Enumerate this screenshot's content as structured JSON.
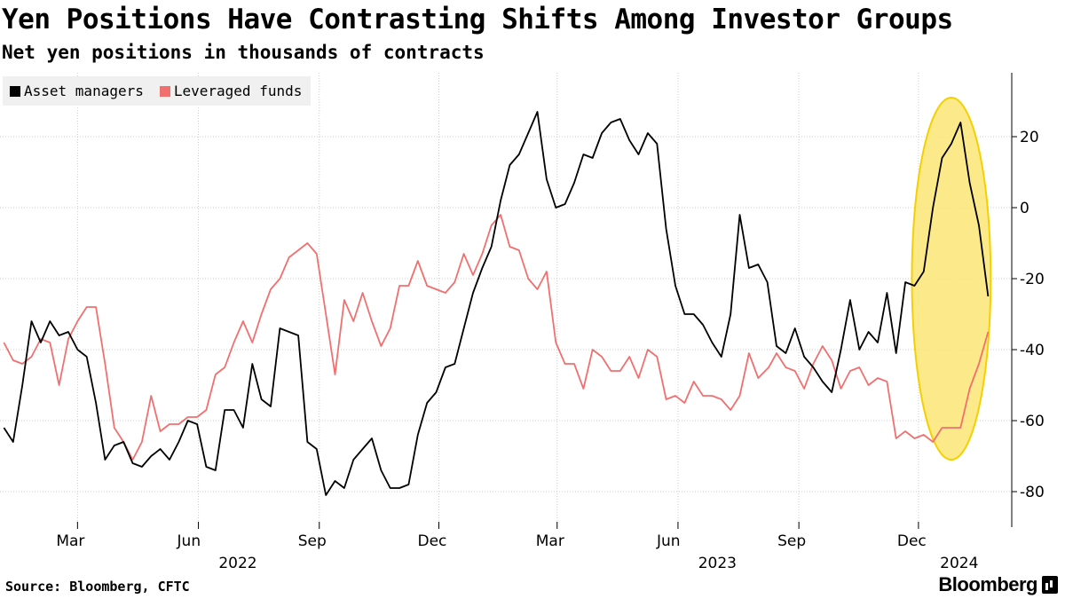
{
  "header": {
    "title": "Yen Positions Have Contrasting Shifts Among Investor Groups",
    "subtitle": "Net yen positions in thousands of contracts"
  },
  "footer": {
    "source": "Source: Bloomberg, CFTC",
    "brand": "Bloomberg"
  },
  "colors": {
    "asset_managers": "#000000",
    "leveraged_funds": "#f07070",
    "highlight_fill": "#fce676",
    "highlight_stroke": "#f5d000",
    "grid": "#cccccc"
  },
  "chart_data": {
    "type": "line",
    "title": "Yen Positions Have Contrasting Shifts Among Investor Groups",
    "subtitle": "Net yen positions in thousands of contracts",
    "ylabel": "",
    "xlabel": "",
    "ylim": [
      -90,
      38
    ],
    "xlim": [
      "2022-01-01",
      "2024-02-10"
    ],
    "y_axis_position": "right",
    "y_ticks": [
      20,
      0,
      -20,
      -40,
      -60,
      -80
    ],
    "y_tick_labels": [
      "20",
      "0",
      "-20",
      "-40",
      "-60",
      "-80"
    ],
    "x_month_ticks": [
      {
        "date": "2022-03-01",
        "label": "Mar"
      },
      {
        "date": "2022-06-01",
        "label": "Jun"
      },
      {
        "date": "2022-09-01",
        "label": "Sep"
      },
      {
        "date": "2022-12-01",
        "label": "Dec"
      },
      {
        "date": "2023-03-01",
        "label": "Mar"
      },
      {
        "date": "2023-06-01",
        "label": "Jun"
      },
      {
        "date": "2023-09-01",
        "label": "Sep"
      },
      {
        "date": "2023-12-01",
        "label": "Dec"
      }
    ],
    "x_year_labels": [
      {
        "date": "2022-07-01",
        "label": "2022"
      },
      {
        "date": "2023-07-01",
        "label": "2023"
      },
      {
        "date": "2024-01-01",
        "label": "2024"
      }
    ],
    "grid": true,
    "legend_position": "top-left",
    "series": [
      {
        "name": "Asset managers",
        "color": "#000000",
        "points": [
          [
            "2022-01-04",
            -62
          ],
          [
            "2022-01-11",
            -66
          ],
          [
            "2022-01-18",
            -50
          ],
          [
            "2022-01-25",
            -32
          ],
          [
            "2022-02-01",
            -38
          ],
          [
            "2022-02-08",
            -32
          ],
          [
            "2022-02-15",
            -36
          ],
          [
            "2022-02-22",
            -35
          ],
          [
            "2022-03-01",
            -40
          ],
          [
            "2022-03-08",
            -42
          ],
          [
            "2022-03-15",
            -55
          ],
          [
            "2022-03-22",
            -71
          ],
          [
            "2022-03-29",
            -67
          ],
          [
            "2022-04-05",
            -66
          ],
          [
            "2022-04-12",
            -72
          ],
          [
            "2022-04-19",
            -73
          ],
          [
            "2022-04-26",
            -70
          ],
          [
            "2022-05-03",
            -68
          ],
          [
            "2022-05-10",
            -71
          ],
          [
            "2022-05-17",
            -66
          ],
          [
            "2022-05-24",
            -60
          ],
          [
            "2022-05-31",
            -61
          ],
          [
            "2022-06-07",
            -73
          ],
          [
            "2022-06-14",
            -74
          ],
          [
            "2022-06-21",
            -57
          ],
          [
            "2022-06-28",
            -57
          ],
          [
            "2022-07-05",
            -62
          ],
          [
            "2022-07-12",
            -44
          ],
          [
            "2022-07-19",
            -54
          ],
          [
            "2022-07-26",
            -56
          ],
          [
            "2022-08-02",
            -34
          ],
          [
            "2022-08-09",
            -35
          ],
          [
            "2022-08-16",
            -36
          ],
          [
            "2022-08-23",
            -66
          ],
          [
            "2022-08-30",
            -68
          ],
          [
            "2022-09-06",
            -81
          ],
          [
            "2022-09-13",
            -77
          ],
          [
            "2022-09-20",
            -79
          ],
          [
            "2022-09-27",
            -71
          ],
          [
            "2022-10-04",
            -68
          ],
          [
            "2022-10-11",
            -65
          ],
          [
            "2022-10-18",
            -74
          ],
          [
            "2022-10-25",
            -79
          ],
          [
            "2022-11-01",
            -79
          ],
          [
            "2022-11-08",
            -78
          ],
          [
            "2022-11-15",
            -64
          ],
          [
            "2022-11-22",
            -55
          ],
          [
            "2022-11-29",
            -52
          ],
          [
            "2022-12-06",
            -45
          ],
          [
            "2022-12-13",
            -44
          ],
          [
            "2022-12-20",
            -34
          ],
          [
            "2022-12-27",
            -24
          ],
          [
            "2023-01-03",
            -17
          ],
          [
            "2023-01-10",
            -11
          ],
          [
            "2023-01-17",
            2
          ],
          [
            "2023-01-24",
            12
          ],
          [
            "2023-01-31",
            15
          ],
          [
            "2023-02-07",
            21
          ],
          [
            "2023-02-14",
            27
          ],
          [
            "2023-02-21",
            8
          ],
          [
            "2023-02-28",
            0
          ],
          [
            "2023-03-07",
            1
          ],
          [
            "2023-03-14",
            7
          ],
          [
            "2023-03-21",
            15
          ],
          [
            "2023-03-28",
            14
          ],
          [
            "2023-04-04",
            21
          ],
          [
            "2023-04-11",
            24
          ],
          [
            "2023-04-18",
            25
          ],
          [
            "2023-04-25",
            19
          ],
          [
            "2023-05-02",
            15
          ],
          [
            "2023-05-09",
            21
          ],
          [
            "2023-05-16",
            18
          ],
          [
            "2023-05-23",
            -6
          ],
          [
            "2023-05-30",
            -22
          ],
          [
            "2023-06-06",
            -30
          ],
          [
            "2023-06-13",
            -30
          ],
          [
            "2023-06-20",
            -33
          ],
          [
            "2023-06-27",
            -38
          ],
          [
            "2023-07-04",
            -42
          ],
          [
            "2023-07-11",
            -30
          ],
          [
            "2023-07-18",
            -2
          ],
          [
            "2023-07-25",
            -17
          ],
          [
            "2023-08-01",
            -16
          ],
          [
            "2023-08-08",
            -21
          ],
          [
            "2023-08-15",
            -39
          ],
          [
            "2023-08-22",
            -41
          ],
          [
            "2023-08-29",
            -34
          ],
          [
            "2023-09-05",
            -42
          ],
          [
            "2023-09-12",
            -45
          ],
          [
            "2023-09-19",
            -49
          ],
          [
            "2023-09-26",
            -52
          ],
          [
            "2023-10-03",
            -40
          ],
          [
            "2023-10-10",
            -26
          ],
          [
            "2023-10-17",
            -40
          ],
          [
            "2023-10-24",
            -35
          ],
          [
            "2023-10-31",
            -38
          ],
          [
            "2023-11-07",
            -24
          ],
          [
            "2023-11-14",
            -41
          ],
          [
            "2023-11-21",
            -21
          ],
          [
            "2023-11-28",
            -22
          ],
          [
            "2023-12-05",
            -18
          ],
          [
            "2023-12-12",
            0
          ],
          [
            "2023-12-19",
            14
          ],
          [
            "2023-12-26",
            18
          ],
          [
            "2024-01-02",
            24
          ],
          [
            "2024-01-09",
            7
          ],
          [
            "2024-01-16",
            -5
          ],
          [
            "2024-01-23",
            -25
          ]
        ]
      },
      {
        "name": "Leveraged funds",
        "color": "#f07070",
        "points": [
          [
            "2022-01-04",
            -38
          ],
          [
            "2022-01-11",
            -43
          ],
          [
            "2022-01-18",
            -44
          ],
          [
            "2022-01-25",
            -42
          ],
          [
            "2022-02-01",
            -37
          ],
          [
            "2022-02-08",
            -38
          ],
          [
            "2022-02-15",
            -50
          ],
          [
            "2022-02-22",
            -37
          ],
          [
            "2022-03-01",
            -32
          ],
          [
            "2022-03-08",
            -28
          ],
          [
            "2022-03-15",
            -28
          ],
          [
            "2022-03-22",
            -44
          ],
          [
            "2022-03-29",
            -62
          ],
          [
            "2022-04-05",
            -66
          ],
          [
            "2022-04-12",
            -71
          ],
          [
            "2022-04-19",
            -66
          ],
          [
            "2022-04-26",
            -53
          ],
          [
            "2022-05-03",
            -63
          ],
          [
            "2022-05-10",
            -61
          ],
          [
            "2022-05-17",
            -61
          ],
          [
            "2022-05-24",
            -59
          ],
          [
            "2022-05-31",
            -59
          ],
          [
            "2022-06-07",
            -57
          ],
          [
            "2022-06-14",
            -47
          ],
          [
            "2022-06-21",
            -45
          ],
          [
            "2022-06-28",
            -38
          ],
          [
            "2022-07-05",
            -32
          ],
          [
            "2022-07-12",
            -38
          ],
          [
            "2022-07-19",
            -30
          ],
          [
            "2022-07-26",
            -23
          ],
          [
            "2022-08-02",
            -20
          ],
          [
            "2022-08-09",
            -14
          ],
          [
            "2022-08-16",
            -12
          ],
          [
            "2022-08-23",
            -10
          ],
          [
            "2022-08-30",
            -13
          ],
          [
            "2022-09-06",
            -30
          ],
          [
            "2022-09-13",
            -47
          ],
          [
            "2022-09-20",
            -26
          ],
          [
            "2022-09-27",
            -32
          ],
          [
            "2022-10-04",
            -24
          ],
          [
            "2022-10-11",
            -32
          ],
          [
            "2022-10-18",
            -39
          ],
          [
            "2022-10-25",
            -34
          ],
          [
            "2022-11-01",
            -22
          ],
          [
            "2022-11-08",
            -22
          ],
          [
            "2022-11-15",
            -15
          ],
          [
            "2022-11-22",
            -22
          ],
          [
            "2022-11-29",
            -23
          ],
          [
            "2022-12-06",
            -24
          ],
          [
            "2022-12-13",
            -21
          ],
          [
            "2022-12-20",
            -13
          ],
          [
            "2022-12-27",
            -19
          ],
          [
            "2023-01-03",
            -13
          ],
          [
            "2023-01-10",
            -5
          ],
          [
            "2023-01-17",
            -2
          ],
          [
            "2023-01-24",
            -11
          ],
          [
            "2023-01-31",
            -12
          ],
          [
            "2023-02-07",
            -20
          ],
          [
            "2023-02-14",
            -23
          ],
          [
            "2023-02-21",
            -18
          ],
          [
            "2023-02-28",
            -38
          ],
          [
            "2023-03-07",
            -44
          ],
          [
            "2023-03-14",
            -44
          ],
          [
            "2023-03-21",
            -51
          ],
          [
            "2023-03-28",
            -40
          ],
          [
            "2023-04-04",
            -42
          ],
          [
            "2023-04-11",
            -46
          ],
          [
            "2023-04-18",
            -46
          ],
          [
            "2023-04-25",
            -42
          ],
          [
            "2023-05-02",
            -48
          ],
          [
            "2023-05-09",
            -40
          ],
          [
            "2023-05-16",
            -42
          ],
          [
            "2023-05-23",
            -54
          ],
          [
            "2023-05-30",
            -53
          ],
          [
            "2023-06-06",
            -55
          ],
          [
            "2023-06-13",
            -49
          ],
          [
            "2023-06-20",
            -53
          ],
          [
            "2023-06-27",
            -53
          ],
          [
            "2023-07-04",
            -54
          ],
          [
            "2023-07-11",
            -57
          ],
          [
            "2023-07-18",
            -53
          ],
          [
            "2023-07-25",
            -41
          ],
          [
            "2023-08-01",
            -48
          ],
          [
            "2023-08-09",
            -45
          ],
          [
            "2023-08-15",
            -41
          ],
          [
            "2023-08-22",
            -45
          ],
          [
            "2023-08-29",
            -46
          ],
          [
            "2023-09-05",
            -51
          ],
          [
            "2023-09-12",
            -44
          ],
          [
            "2023-09-19",
            -39
          ],
          [
            "2023-09-26",
            -43
          ],
          [
            "2023-10-03",
            -51
          ],
          [
            "2023-10-10",
            -46
          ],
          [
            "2023-10-17",
            -45
          ],
          [
            "2023-10-24",
            -50
          ],
          [
            "2023-10-31",
            -48
          ],
          [
            "2023-11-07",
            -49
          ],
          [
            "2023-11-14",
            -65
          ],
          [
            "2023-11-21",
            -63
          ],
          [
            "2023-11-28",
            -65
          ],
          [
            "2023-12-05",
            -64
          ],
          [
            "2023-12-12",
            -66
          ],
          [
            "2023-12-19",
            -62
          ],
          [
            "2023-12-26",
            -62
          ],
          [
            "2024-01-02",
            -62
          ],
          [
            "2024-01-09",
            -51
          ],
          [
            "2024-01-16",
            -44
          ],
          [
            "2024-01-23",
            -35
          ]
        ]
      }
    ],
    "annotations": [
      {
        "type": "ellipse",
        "x_center": "2023-12-26",
        "y_center": -20,
        "x_radius_days": 30,
        "y_radius": 51
      }
    ]
  }
}
